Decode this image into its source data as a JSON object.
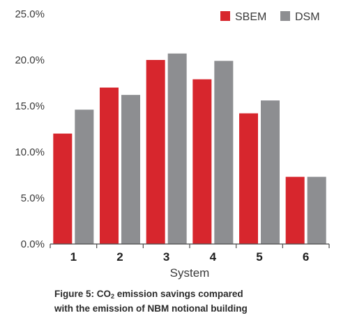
{
  "chart_data": {
    "type": "bar",
    "categories": [
      "1",
      "2",
      "3",
      "4",
      "5",
      "6"
    ],
    "series": [
      {
        "name": "SBEM",
        "values": [
          12.0,
          17.0,
          20.0,
          17.9,
          14.2,
          7.3
        ]
      },
      {
        "name": "DSM",
        "values": [
          14.6,
          16.2,
          20.7,
          19.9,
          15.6,
          7.3
        ]
      }
    ],
    "xlabel": "System",
    "ylabel": "",
    "ylim": [
      0,
      25
    ],
    "yticks": [
      "0.0%",
      "5.0%",
      "10.0%",
      "15.0%",
      "20.0%",
      "25.0%"
    ],
    "ytick_values": [
      0,
      5,
      10,
      15,
      20,
      25
    ],
    "grid": false,
    "legend_position": "top-right",
    "colors": {
      "SBEM": "#d7262d",
      "DSM": "#8d8e91"
    }
  },
  "caption": {
    "line1_prefix": "Figure 5: CO",
    "line1_subscript": "2",
    "line1_suffix": " emission savings compared",
    "line2": "with the emission of NBM notional building"
  }
}
